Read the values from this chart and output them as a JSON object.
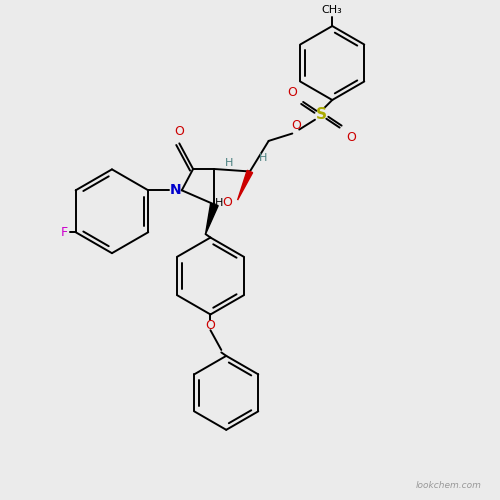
{
  "background_color": "#ebebeb",
  "bond_color": "#000000",
  "atom_colors": {
    "F": "#cc00cc",
    "N": "#0000cc",
    "O": "#cc0000",
    "S": "#aaaa00",
    "H_stereo": "#4a8080",
    "C": "#000000"
  },
  "fig_width": 5.0,
  "fig_height": 5.0,
  "dpi": 100,
  "watermark": "lookchem.com",
  "xlim": [
    0,
    10
  ],
  "ylim": [
    0,
    10
  ]
}
